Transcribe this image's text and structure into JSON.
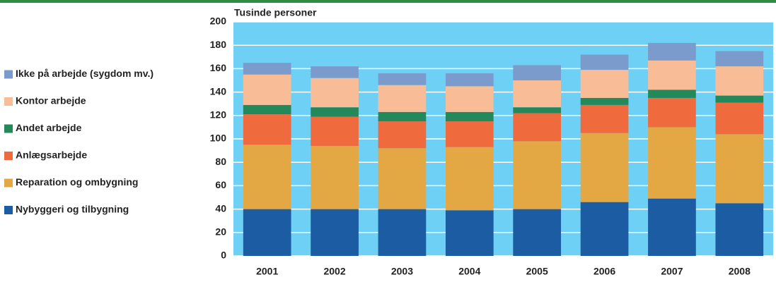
{
  "chart_data": {
    "type": "stacked_bar",
    "title": "Tusinde personer",
    "categories": [
      "2001",
      "2002",
      "2003",
      "2004",
      "2005",
      "2006",
      "2007",
      "2008"
    ],
    "series": [
      {
        "name": "Nybyggeri og tilbygning",
        "color": "#1b5ca3",
        "values": [
          40,
          40,
          40,
          39,
          40,
          46,
          49,
          45
        ]
      },
      {
        "name": "Reparation og ombygning",
        "color": "#e3a843",
        "values": [
          55,
          54,
          52,
          54,
          58,
          59,
          61,
          59
        ]
      },
      {
        "name": "Anlægsarbejde",
        "color": "#ef6b3d",
        "values": [
          26,
          25,
          23,
          22,
          24,
          24,
          25,
          27
        ]
      },
      {
        "name": "Andet arbejde",
        "color": "#24895a",
        "values": [
          8,
          8,
          8,
          8,
          5,
          6,
          7,
          6
        ]
      },
      {
        "name": "Kontor arbejde",
        "color": "#f8bd97",
        "values": [
          26,
          25,
          23,
          22,
          23,
          24,
          25,
          25
        ]
      },
      {
        "name": "Ikke på arbejde (sygdom mv.)",
        "color": "#7b9bcd",
        "values": [
          10,
          10,
          10,
          11,
          13,
          13,
          15,
          13
        ]
      }
    ],
    "ylim": [
      0,
      200
    ],
    "yticks": [
      0,
      20,
      40,
      60,
      80,
      100,
      120,
      140,
      160,
      180,
      200
    ],
    "grid": true,
    "plot_background": "#6fd0f5",
    "legend": "left"
  }
}
